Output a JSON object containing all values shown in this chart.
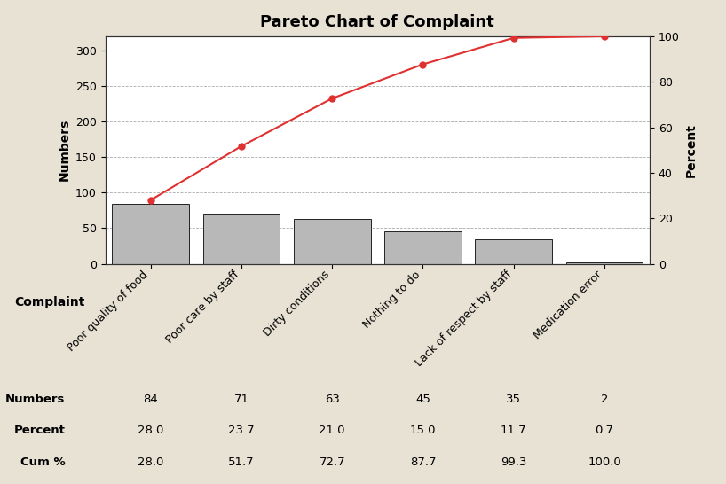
{
  "title": "Pareto Chart of Complaint",
  "categories": [
    "Poor quality of food",
    "Poor care by staff",
    "Dirty conditions",
    "Nothing to do",
    "Lack of respect by staff",
    "Medication error"
  ],
  "values": [
    84,
    71,
    63,
    45,
    35,
    2
  ],
  "cum_percent": [
    28.0,
    51.7,
    72.7,
    87.7,
    99.3,
    100.0
  ],
  "percent": [
    28.0,
    23.7,
    21.0,
    15.0,
    11.7,
    0.7
  ],
  "bar_color": "#b8b8b8",
  "bar_edgecolor": "#222222",
  "line_color": "#e03030",
  "marker_color": "#e03030",
  "background_color": "#e8e2d5",
  "plot_bg_color": "#ffffff",
  "ylabel_left": "Numbers",
  "ylabel_right": "Percent",
  "xlabel": "Complaint",
  "ylim_left": [
    0,
    320
  ],
  "ylim_right": [
    0,
    100
  ],
  "yticks_left": [
    0,
    50,
    100,
    150,
    200,
    250,
    300
  ],
  "yticks_right": [
    0,
    20,
    40,
    60,
    80,
    100
  ],
  "table_row_labels": [
    "Numbers",
    "Percent",
    "Cum %"
  ],
  "table_numbers": [
    [
      84,
      71,
      63,
      45,
      35,
      2
    ],
    [
      28.0,
      23.7,
      21.0,
      15.0,
      11.7,
      0.7
    ],
    [
      28.0,
      51.7,
      72.7,
      87.7,
      99.3,
      100.0
    ]
  ],
  "title_fontsize": 13,
  "label_fontsize": 10,
  "tick_fontsize": 9,
  "table_fontsize": 9.5
}
